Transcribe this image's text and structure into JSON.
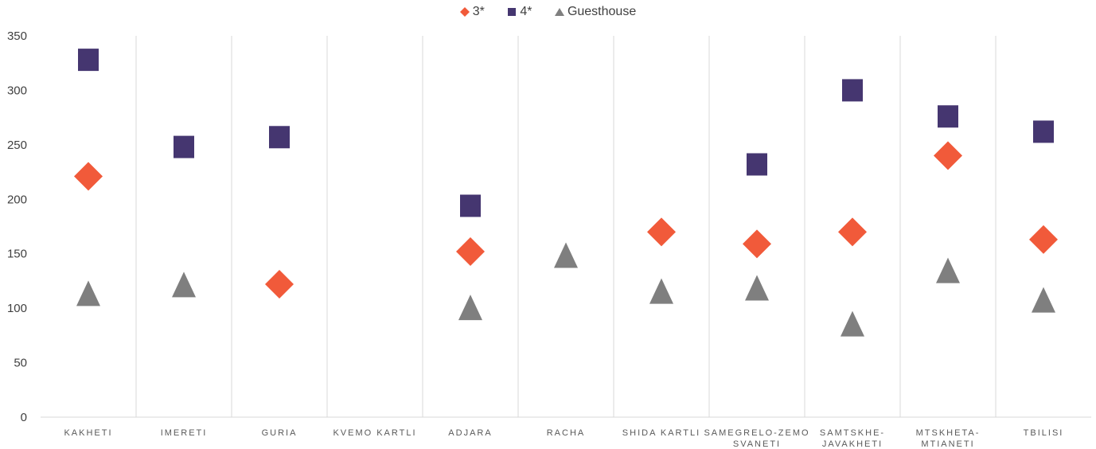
{
  "chart_data": {
    "type": "scatter",
    "categories": [
      "KAKHETI",
      "IMERETI",
      "GURIA",
      "KVEMO KARTLI",
      "ADJARA",
      "RACHA",
      "SHIDA KARTLI",
      "SAMEGRELO-ZEMO SVANETI",
      "SAMTSKHE-JAVAKHETI",
      "MTSKHETA-MTIANETI",
      "TBILISI"
    ],
    "category_lines": [
      [
        "KAKHETI"
      ],
      [
        "IMERETI"
      ],
      [
        "GURIA"
      ],
      [
        "KVEMO KARTLI"
      ],
      [
        "ADJARA"
      ],
      [
        "RACHA"
      ],
      [
        "SHIDA KARTLI"
      ],
      [
        "SAMEGRELO-ZEMO",
        "SVANETI"
      ],
      [
        "SAMTSKHE-",
        "JAVAKHETI"
      ],
      [
        "MTSKHETA-",
        "MTIANETI"
      ],
      [
        "TBILISI"
      ]
    ],
    "series": [
      {
        "name": "3*",
        "marker": "diamond",
        "color": "#F15A3A",
        "values": [
          221,
          null,
          122,
          null,
          152,
          null,
          170,
          159,
          170,
          240,
          163
        ]
      },
      {
        "name": "4*",
        "marker": "square",
        "color": "#453670",
        "values": [
          328,
          248,
          257,
          null,
          194,
          null,
          null,
          232,
          300,
          276,
          262
        ]
      },
      {
        "name": "Guesthouse",
        "marker": "triangle",
        "color": "#7F7F7F",
        "values": [
          113,
          121,
          null,
          null,
          100,
          148,
          115,
          118,
          85,
          134,
          107
        ]
      }
    ],
    "ylim": [
      0,
      350
    ],
    "yticks": [
      0,
      50,
      100,
      150,
      200,
      250,
      300,
      350
    ],
    "legend_position": "top",
    "vertical_gridlines": true
  }
}
